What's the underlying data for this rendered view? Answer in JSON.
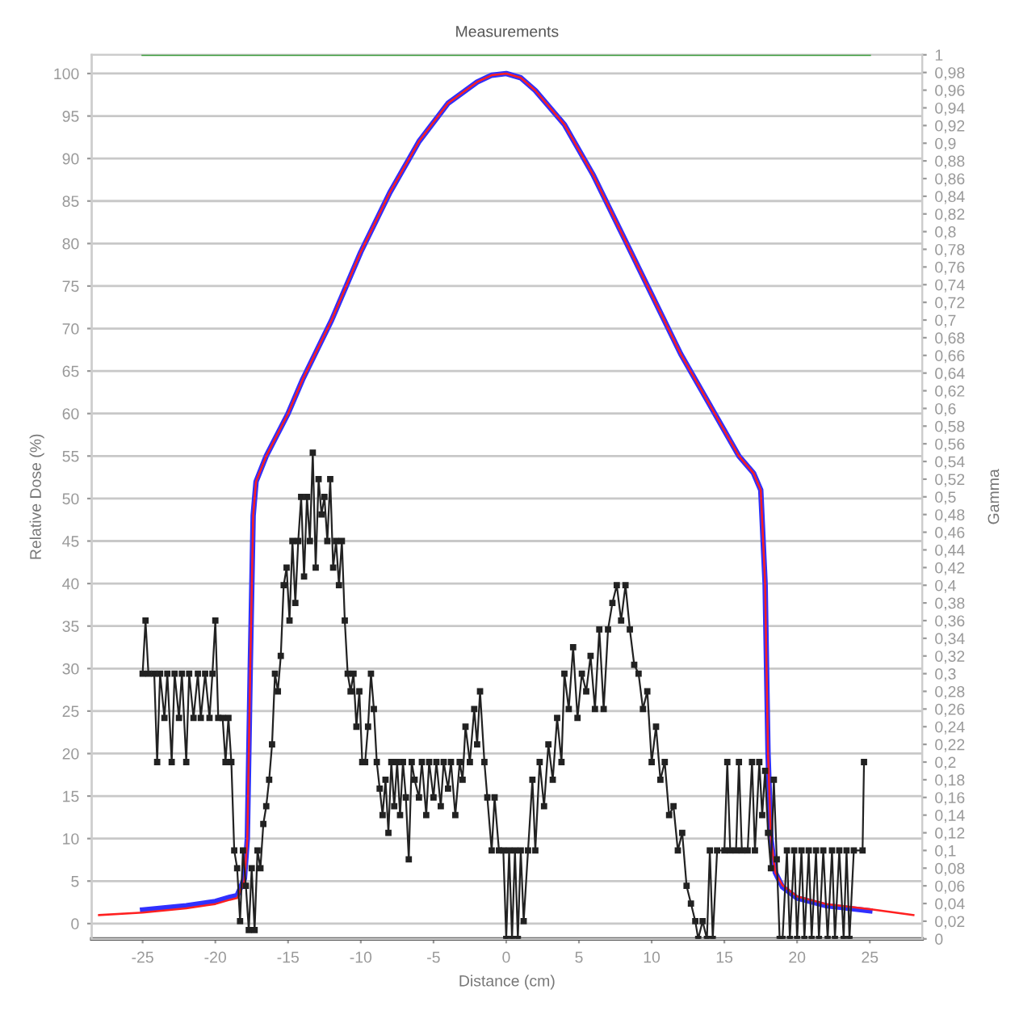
{
  "chart_data": {
    "type": "line",
    "title": "Measurements",
    "xlabel": "Distance (cm)",
    "ylabel": "Relative Dose (%)",
    "y2label": "Gamma",
    "xlim": [
      -28.5,
      28.6
    ],
    "xticks": [
      -25,
      -20,
      -15,
      -10,
      -5,
      0,
      5,
      10,
      15,
      20,
      25
    ],
    "ylim": [
      -1.8,
      102.2
    ],
    "yticks": [
      0,
      5,
      10,
      15,
      20,
      25,
      30,
      35,
      40,
      45,
      50,
      55,
      60,
      65,
      70,
      75,
      80,
      85,
      90,
      95,
      100
    ],
    "y2lim": [
      0,
      1
    ],
    "y2ticks": [
      0,
      {
        "value": 0.02,
        "label": "0,02"
      },
      {
        "value": 0.04,
        "label": "0,04"
      },
      {
        "value": 0.06,
        "label": "0,06"
      },
      {
        "value": 0.08,
        "label": "0,08"
      },
      {
        "value": 0.1,
        "label": "0,1"
      },
      {
        "value": 0.12,
        "label": "0,12"
      },
      {
        "value": 0.14,
        "label": "0,14"
      },
      {
        "value": 0.16,
        "label": "0,16"
      },
      {
        "value": 0.18,
        "label": "0,18"
      },
      {
        "value": 0.2,
        "label": "0,2"
      },
      {
        "value": 0.22,
        "label": "0,22"
      },
      {
        "value": 0.24,
        "label": "0,24"
      },
      {
        "value": 0.26,
        "label": "0,26"
      },
      {
        "value": 0.28,
        "label": "0,28"
      },
      {
        "value": 0.3,
        "label": "0,3"
      },
      {
        "value": 0.32,
        "label": "0,32"
      },
      {
        "value": 0.34,
        "label": "0,34"
      },
      {
        "value": 0.36,
        "label": "0,36"
      },
      {
        "value": 0.38,
        "label": "0,38"
      },
      {
        "value": 0.4,
        "label": "0,4"
      },
      {
        "value": 0.42,
        "label": "0,42"
      },
      {
        "value": 0.44,
        "label": "0,44"
      },
      {
        "value": 0.46,
        "label": "0,46"
      },
      {
        "value": 0.48,
        "label": "0,48"
      },
      {
        "value": 0.5,
        "label": "0,5"
      },
      {
        "value": 0.52,
        "label": "0,52"
      },
      {
        "value": 0.54,
        "label": "0,54"
      },
      {
        "value": 0.56,
        "label": "0,56"
      },
      {
        "value": 0.58,
        "label": "0,58"
      },
      {
        "value": 0.6,
        "label": "0,6"
      },
      {
        "value": 0.62,
        "label": "0,62"
      },
      {
        "value": 0.64,
        "label": "0,64"
      },
      {
        "value": 0.66,
        "label": "0,66"
      },
      {
        "value": 0.68,
        "label": "0,68"
      },
      {
        "value": 0.7,
        "label": "0,7"
      },
      {
        "value": 0.72,
        "label": "0,72"
      },
      {
        "value": 0.74,
        "label": "0,74"
      },
      {
        "value": 0.76,
        "label": "0,76"
      },
      {
        "value": 0.78,
        "label": "0,78"
      },
      {
        "value": 0.8,
        "label": "0,8"
      },
      {
        "value": 0.82,
        "label": "0,82"
      },
      {
        "value": 0.84,
        "label": "0,84"
      },
      {
        "value": 0.86,
        "label": "0,86"
      },
      {
        "value": 0.88,
        "label": "0,88"
      },
      {
        "value": 0.9,
        "label": "0,9"
      },
      {
        "value": 0.92,
        "label": "0,92"
      },
      {
        "value": 0.94,
        "label": "0,94"
      },
      {
        "value": 0.96,
        "label": "0,96"
      },
      {
        "value": 0.98,
        "label": "0,98"
      },
      1
    ],
    "grid": "y",
    "series": [
      {
        "color": "#ff2020",
        "marker": "none",
        "x": [
          -28,
          -25,
          -22,
          -20,
          -19,
          -18.5,
          -18,
          -17.8,
          -17.6,
          -17.4,
          -17.2,
          -16.5,
          -15,
          -14,
          -12,
          -10,
          -8,
          -6,
          -4,
          -2,
          -1,
          0,
          1,
          2,
          4,
          6,
          8,
          10,
          12,
          14,
          15,
          16,
          17,
          17.5,
          17.8,
          18,
          18.2,
          18.5,
          19,
          20,
          22,
          25,
          28
        ],
        "values": [
          1.0,
          1.3,
          1.8,
          2.3,
          2.8,
          3,
          5,
          10,
          30,
          48,
          52,
          55,
          60,
          64,
          71,
          79,
          86,
          92,
          96.5,
          99,
          99.8,
          100,
          99.5,
          98,
          94,
          88,
          81,
          74,
          67,
          61,
          58,
          55,
          53,
          51,
          40,
          20,
          10,
          6,
          4.5,
          3.2,
          2.3,
          1.7,
          1.0
        ]
      },
      {
        "color": "#3030ff",
        "marker": "none",
        "x": [
          -25,
          -22,
          -20,
          -19,
          -18.5,
          -18,
          -17.8,
          -17.6,
          -17.4,
          -17.2,
          -16.5,
          -15,
          -14,
          -12,
          -10,
          -8,
          -6,
          -4,
          -2,
          -1,
          0,
          1,
          2,
          4,
          6,
          8,
          10,
          12,
          14,
          15,
          16,
          17,
          17.5,
          17.8,
          18,
          18.2,
          18.5,
          19,
          20,
          22,
          25
        ],
        "values": [
          1.6,
          2.1,
          2.6,
          3.1,
          3.3,
          5.3,
          10,
          30,
          48,
          52,
          55,
          60,
          64,
          71,
          79,
          86,
          92,
          96.5,
          99,
          99.8,
          100,
          99.5,
          98,
          94,
          88,
          81,
          74,
          67,
          61,
          58,
          55,
          53,
          51,
          40,
          20,
          10,
          6,
          4.3,
          3.0,
          2.1,
          1.5
        ]
      },
      {
        "color": "#222222",
        "marker": "square",
        "axis": "y2",
        "x": [
          -25,
          -24.8,
          -24.6,
          -24.2,
          -24.0,
          -23.8,
          -23.5,
          -23.3,
          -23.0,
          -22.8,
          -22.5,
          -22.3,
          -22.0,
          -21.8,
          -21.5,
          -21.2,
          -21.0,
          -20.7,
          -20.4,
          -20.2,
          -20.0,
          -19.8,
          -19.5,
          -19.3,
          -19.1,
          -18.9,
          -18.7,
          -18.5,
          -18.3,
          -18.1,
          -17.9,
          -17.7,
          -17.5,
          -17.3,
          -17.1,
          -16.9,
          -16.7,
          -16.5,
          -16.3,
          -16.1,
          -15.9,
          -15.7,
          -15.5,
          -15.3,
          -15.1,
          -14.9,
          -14.7,
          -14.5,
          -14.3,
          -14.1,
          -13.9,
          -13.7,
          -13.5,
          -13.3,
          -13.1,
          -12.9,
          -12.7,
          -12.5,
          -12.3,
          -12.1,
          -11.9,
          -11.7,
          -11.5,
          -11.3,
          -11.1,
          -10.9,
          -10.7,
          -10.5,
          -10.3,
          -10.1,
          -9.9,
          -9.7,
          -9.5,
          -9.3,
          -9.1,
          -8.9,
          -8.7,
          -8.5,
          -8.3,
          -8.1,
          -7.9,
          -7.7,
          -7.5,
          -7.3,
          -7.1,
          -6.9,
          -6.7,
          -6.5,
          -6.3,
          -6.0,
          -5.8,
          -5.5,
          -5.3,
          -5.0,
          -4.8,
          -4.5,
          -4.3,
          -4.0,
          -3.8,
          -3.5,
          -3.2,
          -3.0,
          -2.8,
          -2.5,
          -2.2,
          -2.0,
          -1.8,
          -1.5,
          -1.3,
          -1.0,
          -0.8,
          -0.5,
          -0.2,
          0.0,
          0.2,
          0.4,
          0.6,
          0.8,
          1.0,
          1.2,
          1.5,
          1.8,
          2.0,
          2.3,
          2.6,
          2.9,
          3.2,
          3.5,
          3.8,
          4.0,
          4.3,
          4.6,
          4.9,
          5.2,
          5.5,
          5.8,
          6.1,
          6.4,
          6.7,
          7.0,
          7.3,
          7.6,
          7.9,
          8.2,
          8.5,
          8.8,
          9.1,
          9.4,
          9.7,
          10.0,
          10.3,
          10.6,
          10.9,
          11.2,
          11.5,
          11.8,
          12.1,
          12.4,
          12.7,
          13.0,
          13.2,
          13.5,
          13.8,
          14.0,
          14.2,
          14.5,
          15.0,
          15.2,
          15.4,
          15.8,
          16.0,
          16.2,
          16.6,
          16.9,
          17.1,
          17.4,
          17.6,
          17.8,
          18.0,
          18.2,
          18.4,
          18.6,
          18.8,
          19.0,
          19.3,
          19.5,
          19.8,
          20.0,
          20.3,
          20.5,
          20.8,
          21.0,
          21.3,
          21.5,
          21.8,
          22.1,
          22.4,
          22.6,
          22.9,
          23.2,
          23.4,
          23.6,
          23.9,
          24.5,
          24.6
        ],
        "values": [
          0.3,
          0.36,
          0.3,
          0.3,
          0.2,
          0.3,
          0.25,
          0.3,
          0.2,
          0.3,
          0.25,
          0.3,
          0.2,
          0.3,
          0.25,
          0.3,
          0.25,
          0.3,
          0.25,
          0.3,
          0.36,
          0.25,
          0.25,
          0.2,
          0.25,
          0.2,
          0.1,
          0.08,
          0.02,
          0.1,
          0.06,
          0.01,
          0.08,
          0.01,
          0.1,
          0.08,
          0.13,
          0.15,
          0.18,
          0.22,
          0.3,
          0.28,
          0.32,
          0.4,
          0.42,
          0.36,
          0.45,
          0.38,
          0.45,
          0.5,
          0.41,
          0.5,
          0.45,
          0.55,
          0.42,
          0.52,
          0.48,
          0.5,
          0.45,
          0.52,
          0.42,
          0.45,
          0.4,
          0.45,
          0.36,
          0.3,
          0.28,
          0.3,
          0.24,
          0.28,
          0.2,
          0.2,
          0.24,
          0.3,
          0.26,
          0.2,
          0.17,
          0.14,
          0.18,
          0.12,
          0.2,
          0.15,
          0.2,
          0.14,
          0.2,
          0.16,
          0.09,
          0.2,
          0.18,
          0.16,
          0.2,
          0.14,
          0.2,
          0.16,
          0.2,
          0.15,
          0.2,
          0.17,
          0.2,
          0.14,
          0.2,
          0.18,
          0.24,
          0.2,
          0.26,
          0.22,
          0.28,
          0.2,
          0.16,
          0.1,
          0.16,
          0.1,
          0.1,
          0.0,
          0.1,
          0.0,
          0.1,
          0.0,
          0.1,
          0.02,
          0.1,
          0.18,
          0.1,
          0.2,
          0.15,
          0.22,
          0.18,
          0.25,
          0.2,
          0.3,
          0.26,
          0.33,
          0.25,
          0.3,
          0.28,
          0.32,
          0.26,
          0.35,
          0.26,
          0.35,
          0.38,
          0.4,
          0.36,
          0.4,
          0.35,
          0.31,
          0.3,
          0.26,
          0.28,
          0.2,
          0.24,
          0.18,
          0.2,
          0.14,
          0.15,
          0.1,
          0.12,
          0.06,
          0.04,
          0.02,
          0.0,
          0.02,
          0.0,
          0.1,
          0.0,
          0.1,
          0.1,
          0.2,
          0.1,
          0.1,
          0.2,
          0.1,
          0.1,
          0.2,
          0.1,
          0.2,
          0.14,
          0.19,
          0.12,
          0.08,
          0.18,
          0.09,
          0.0,
          0.0,
          0.1,
          0.0,
          0.1,
          0.0,
          0.1,
          0.0,
          0.1,
          0.0,
          0.1,
          0.0,
          0.1,
          0.0,
          0.1,
          0.0,
          0.1,
          0.0,
          0.1,
          0.0,
          0.1,
          0.1,
          0.2
        ]
      },
      {
        "color": "#3a9a3a",
        "marker": "none",
        "axis": "y2",
        "x": [
          -25,
          25
        ],
        "values": [
          1,
          1
        ]
      }
    ]
  }
}
